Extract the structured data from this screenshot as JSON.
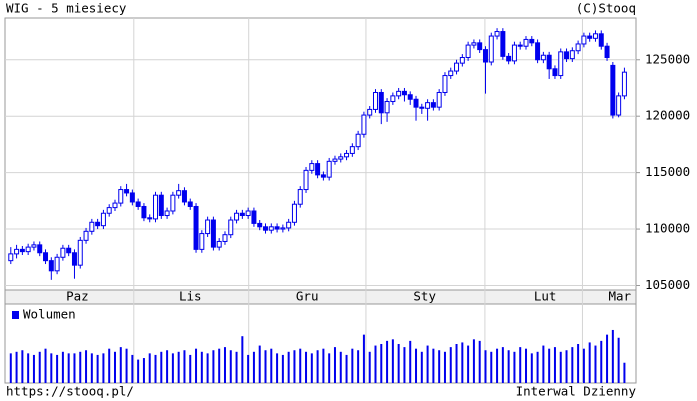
{
  "chart_data": [
    {
      "type": "candlestick",
      "title": "WIG - 5 miesiecy",
      "source": "(C)Stooq",
      "footer_left": "https://stooq.pl/",
      "footer_right": "Interwal Dzienny",
      "color": "#0000ee",
      "grid": true,
      "xlim": [
        -1,
        108
      ],
      "xticks": [
        {
          "value": 11.5,
          "label": "Paz"
        },
        {
          "value": 31,
          "label": "Lis"
        },
        {
          "value": 51.2,
          "label": "Gru"
        },
        {
          "value": 71.5,
          "label": "Sty"
        },
        {
          "value": 92.3,
          "label": "Lut"
        },
        {
          "value": 105.2,
          "label": "Mar"
        }
      ],
      "ylim": [
        104600,
        128700
      ],
      "yticks": [
        105000,
        110000,
        115000,
        120000,
        125000
      ],
      "open": [
        107200,
        107800,
        108200,
        108000,
        108400,
        108600,
        107900,
        107200,
        106300,
        107500,
        108300,
        107900,
        106800,
        109000,
        109800,
        110600,
        110300,
        111400,
        111900,
        112300,
        113500,
        113200,
        112400,
        112000,
        111000,
        110900,
        113000,
        111200,
        111600,
        113000,
        113400,
        112400,
        112000,
        108200,
        109600,
        110800,
        108400,
        108900,
        109500,
        110800,
        111400,
        111200,
        111600,
        110500,
        110200,
        109900,
        110200,
        110000,
        110100,
        110600,
        112200,
        113500,
        115200,
        115800,
        114800,
        114600,
        116000,
        116200,
        116400,
        116700,
        117300,
        118400,
        120100,
        120600,
        122100,
        120300,
        121300,
        121800,
        122200,
        121900,
        121500,
        120800,
        120700,
        121200,
        120800,
        122100,
        123600,
        124000,
        124700,
        125200,
        126300,
        126500,
        125900,
        124800,
        127100,
        127500,
        125300,
        124900,
        126300,
        126200,
        126800,
        126500,
        125000,
        125400,
        124200,
        123600,
        125700,
        125100,
        125800,
        126400,
        127100,
        126900,
        127300,
        126200,
        124500,
        120100,
        121800
      ],
      "high": [
        108400,
        108600,
        108500,
        108700,
        108900,
        108900,
        108200,
        107500,
        107800,
        108600,
        108600,
        108200,
        109300,
        110100,
        110900,
        110900,
        111700,
        112200,
        112600,
        113800,
        114000,
        113500,
        112700,
        112300,
        111300,
        113300,
        113300,
        111900,
        113300,
        114000,
        113700,
        112700,
        112300,
        109900,
        111100,
        111100,
        109200,
        109800,
        111100,
        111700,
        111700,
        111900,
        111900,
        110800,
        110500,
        110500,
        110500,
        110400,
        110900,
        112500,
        113800,
        115500,
        116100,
        116100,
        115100,
        116300,
        116500,
        116700,
        117000,
        117600,
        118700,
        120400,
        120900,
        122400,
        122400,
        121600,
        122100,
        122500,
        122500,
        122200,
        121800,
        121100,
        121500,
        121500,
        122400,
        123900,
        124300,
        125000,
        125500,
        126600,
        126800,
        126800,
        126200,
        127400,
        127800,
        127800,
        125600,
        126600,
        126600,
        127100,
        127100,
        126800,
        125700,
        125700,
        124500,
        126000,
        126000,
        126100,
        126700,
        127400,
        127400,
        127600,
        127600,
        126500,
        124800,
        122100,
        124300
      ],
      "low": [
        106900,
        107400,
        107700,
        107700,
        108100,
        107600,
        106900,
        105500,
        106000,
        107200,
        107600,
        105600,
        106500,
        108700,
        109500,
        110000,
        110000,
        111100,
        111600,
        112000,
        112900,
        112100,
        111700,
        110700,
        110600,
        110600,
        110900,
        110900,
        111300,
        112700,
        112100,
        111700,
        107900,
        107900,
        109300,
        108100,
        108100,
        108600,
        109200,
        110500,
        110900,
        110900,
        110200,
        109900,
        109600,
        109600,
        109700,
        109700,
        109800,
        110300,
        111900,
        113200,
        114900,
        114500,
        114300,
        114300,
        115700,
        115900,
        116100,
        116400,
        117000,
        118100,
        119800,
        120300,
        119300,
        119500,
        121000,
        121500,
        121300,
        121000,
        119600,
        120200,
        119600,
        120500,
        120500,
        121800,
        123300,
        123700,
        124400,
        124900,
        126000,
        125600,
        122000,
        124500,
        126800,
        125000,
        124600,
        124600,
        125900,
        125900,
        126200,
        124700,
        124700,
        123300,
        123300,
        123300,
        124800,
        124800,
        125500,
        126100,
        126600,
        126600,
        125900,
        124900,
        119800,
        119900,
        121500
      ],
      "close": [
        107800,
        108200,
        108000,
        108400,
        108600,
        107900,
        107200,
        106300,
        107500,
        108300,
        107900,
        106800,
        109000,
        109800,
        110600,
        110300,
        111400,
        111900,
        112300,
        113500,
        113200,
        112400,
        112000,
        111000,
        110900,
        113000,
        111200,
        111600,
        113000,
        113400,
        112400,
        112000,
        108200,
        109600,
        110800,
        108400,
        108900,
        109500,
        110800,
        111400,
        111200,
        111600,
        110500,
        110200,
        109900,
        110200,
        110000,
        110100,
        110600,
        112200,
        113500,
        115200,
        115800,
        114800,
        114600,
        116000,
        116200,
        116400,
        116700,
        117300,
        118400,
        120100,
        120600,
        122100,
        120300,
        121300,
        121800,
        122200,
        121900,
        121500,
        120800,
        120700,
        121200,
        120800,
        122100,
        123600,
        124000,
        124700,
        125200,
        126300,
        126500,
        125900,
        124800,
        127100,
        127500,
        125300,
        124900,
        126300,
        126200,
        126800,
        126500,
        125000,
        125400,
        124200,
        123600,
        125700,
        125100,
        125800,
        126400,
        127100,
        126900,
        127300,
        126200,
        125200,
        120100,
        121800,
        123900
      ]
    },
    {
      "type": "bar",
      "color": "#0000ee",
      "ylim": [
        0,
        100
      ],
      "series": [
        {
          "name": "Wolumen",
          "color": "#0000ee",
          "values": [
            38,
            40,
            42,
            38,
            36,
            40,
            44,
            38,
            36,
            40,
            38,
            38,
            40,
            42,
            38,
            36,
            38,
            44,
            40,
            46,
            44,
            36,
            30,
            32,
            38,
            36,
            40,
            42,
            38,
            40,
            42,
            36,
            44,
            40,
            38,
            42,
            44,
            46,
            42,
            40,
            60,
            36,
            40,
            48,
            42,
            44,
            38,
            36,
            40,
            42,
            44,
            40,
            38,
            42,
            44,
            38,
            46,
            40,
            36,
            44,
            42,
            62,
            40,
            48,
            50,
            54,
            56,
            50,
            46,
            54,
            44,
            40,
            48,
            44,
            42,
            40,
            46,
            50,
            52,
            48,
            56,
            54,
            42,
            40,
            44,
            46,
            42,
            40,
            46,
            44,
            38,
            40,
            48,
            44,
            46,
            40,
            42,
            46,
            50,
            44,
            52,
            48,
            54,
            62,
            68,
            58,
            26
          ]
        }
      ]
    }
  ]
}
